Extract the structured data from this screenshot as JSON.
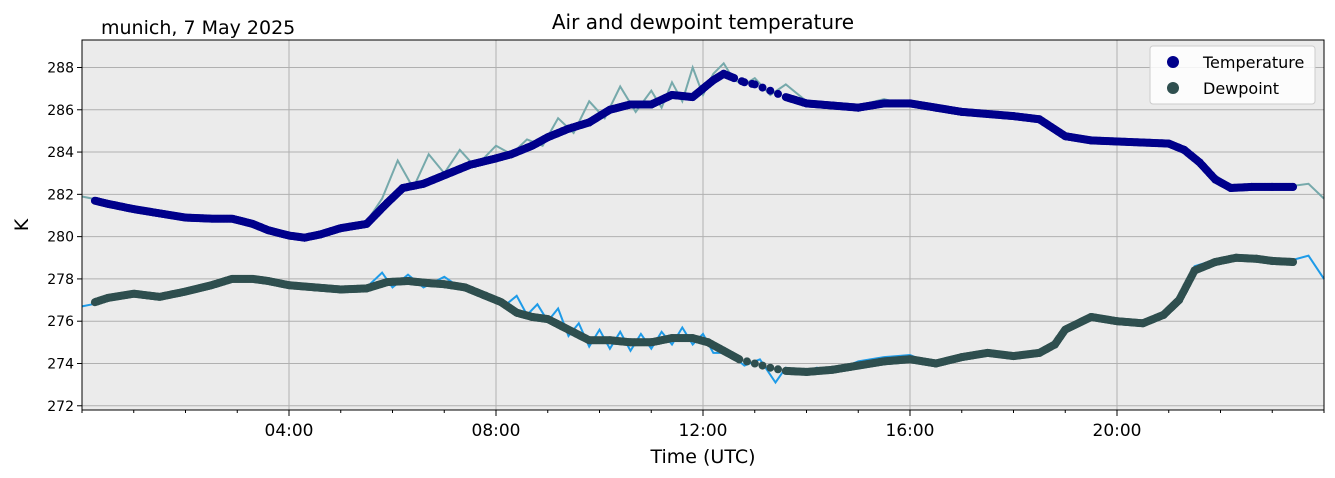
{
  "chart_data": {
    "type": "line",
    "title": "Air and dewpoint temperature",
    "subtitle": "munich, 7 May 2025",
    "xlabel": "Time (UTC)",
    "ylabel": "K",
    "xlim_hours": [
      0,
      24
    ],
    "ylim": [
      271.8,
      289.3
    ],
    "x_ticks": [
      {
        "h": 4,
        "label": "04:00"
      },
      {
        "h": 8,
        "label": "08:00"
      },
      {
        "h": 12,
        "label": "12:00"
      },
      {
        "h": 16,
        "label": "16:00"
      },
      {
        "h": 20,
        "label": "20:00"
      }
    ],
    "y_ticks": [
      272,
      274,
      276,
      278,
      280,
      282,
      284,
      286,
      288
    ],
    "grid": true,
    "legend_position": "top-right",
    "colors": {
      "plot_background": "#ebebeb",
      "grid": "#b0b0b0",
      "temperature_raw": "#76a9ab",
      "temperature_smooth": "#00008b",
      "dewpoint_raw": "#1e9be8",
      "dewpoint_smooth": "#2f4f4f"
    },
    "series": [
      {
        "name": "Temperature",
        "role": "smoothed",
        "x_hours": [
          0.25,
          0.5,
          1.0,
          1.5,
          2.0,
          2.5,
          2.9,
          3.3,
          3.6,
          4.0,
          4.3,
          4.6,
          5.0,
          5.5,
          5.9,
          6.2,
          6.6,
          7.0,
          7.5,
          8.0,
          8.3,
          8.7,
          9.0,
          9.4,
          9.8,
          10.2,
          10.6,
          11.0,
          11.4,
          11.8,
          12.0,
          12.2,
          12.4,
          12.6,
          12.8,
          13.0,
          13.3,
          13.6,
          14.0,
          14.5,
          15.0,
          15.5,
          16.0,
          16.5,
          17.0,
          17.5,
          18.0,
          18.5,
          19.0,
          19.5,
          20.0,
          20.5,
          21.0,
          21.3,
          21.6,
          21.9,
          22.2,
          22.6,
          23.0,
          23.4
        ],
        "values": [
          281.7,
          281.55,
          281.3,
          281.1,
          280.9,
          280.85,
          280.85,
          280.6,
          280.3,
          280.05,
          279.95,
          280.1,
          280.4,
          280.6,
          281.6,
          282.3,
          282.5,
          282.9,
          283.4,
          283.7,
          283.9,
          284.3,
          284.7,
          285.1,
          285.4,
          286.0,
          286.25,
          286.25,
          286.7,
          286.6,
          287.0,
          287.4,
          287.7,
          287.5,
          287.3,
          287.2,
          286.9,
          286.6,
          286.3,
          286.2,
          286.1,
          286.3,
          286.3,
          286.1,
          285.9,
          285.8,
          285.7,
          285.55,
          284.75,
          284.55,
          284.5,
          284.45,
          284.4,
          284.1,
          283.5,
          282.7,
          282.3,
          282.35,
          282.35,
          282.35
        ]
      },
      {
        "name": "Dewpoint",
        "role": "smoothed",
        "x_hours": [
          0.25,
          0.5,
          1.0,
          1.5,
          2.0,
          2.5,
          2.9,
          3.3,
          3.6,
          4.0,
          4.5,
          5.0,
          5.5,
          5.9,
          6.3,
          6.7,
          7.0,
          7.4,
          7.8,
          8.1,
          8.4,
          8.7,
          9.0,
          9.4,
          9.8,
          10.2,
          10.6,
          11.0,
          11.4,
          11.8,
          12.1,
          12.4,
          12.7,
          13.0,
          13.3,
          13.6,
          14.0,
          14.5,
          15.0,
          15.5,
          16.0,
          16.5,
          17.0,
          17.5,
          18.0,
          18.5,
          18.8,
          19.0,
          19.5,
          20.0,
          20.5,
          20.9,
          21.2,
          21.5,
          21.9,
          22.3,
          22.7,
          23.0,
          23.4
        ],
        "values": [
          276.9,
          277.1,
          277.3,
          277.15,
          277.4,
          277.7,
          278.0,
          278.0,
          277.9,
          277.7,
          277.6,
          277.5,
          277.55,
          277.85,
          277.9,
          277.8,
          277.75,
          277.6,
          277.2,
          276.9,
          276.4,
          276.2,
          276.1,
          275.6,
          275.1,
          275.1,
          275.0,
          275.0,
          275.2,
          275.2,
          275.0,
          274.6,
          274.2,
          274.0,
          273.8,
          273.65,
          273.6,
          273.7,
          273.9,
          274.1,
          274.2,
          274.0,
          274.3,
          274.5,
          274.35,
          274.5,
          274.9,
          275.6,
          276.2,
          276.0,
          275.9,
          276.3,
          277.0,
          278.4,
          278.8,
          279.0,
          278.95,
          278.85,
          278.8
        ]
      },
      {
        "name": "",
        "role": "raw temperature",
        "x_hours": [
          0.0,
          0.2,
          0.4,
          1.0,
          2.0,
          3.0,
          4.0,
          4.5,
          5.0,
          5.5,
          5.8,
          6.1,
          6.4,
          6.7,
          7.0,
          7.3,
          7.6,
          8.0,
          8.3,
          8.6,
          8.9,
          9.2,
          9.5,
          9.8,
          10.1,
          10.4,
          10.7,
          11.0,
          11.2,
          11.4,
          11.6,
          11.8,
          12.0,
          12.2,
          12.4,
          12.6,
          12.8,
          13.0,
          13.3,
          13.6,
          14.0,
          14.5,
          15.0,
          15.5,
          16.0,
          16.5,
          17.0,
          17.5,
          18.0,
          18.5,
          19.0,
          19.5,
          20.0,
          20.5,
          21.0,
          21.3,
          21.6,
          21.9,
          22.2,
          22.6,
          23.0,
          23.4,
          23.7,
          24.0
        ],
        "values": [
          281.9,
          281.8,
          281.5,
          281.3,
          280.9,
          280.8,
          280.0,
          280.0,
          280.4,
          280.7,
          281.8,
          283.6,
          282.3,
          283.9,
          283.0,
          284.1,
          283.3,
          284.3,
          283.9,
          284.6,
          284.3,
          285.6,
          284.9,
          286.4,
          285.6,
          287.1,
          285.9,
          286.9,
          286.1,
          287.3,
          286.4,
          288.0,
          286.7,
          287.7,
          288.2,
          287.4,
          287.2,
          287.5,
          286.7,
          287.2,
          286.4,
          286.1,
          286.2,
          286.5,
          286.2,
          286.2,
          285.9,
          285.8,
          285.7,
          285.5,
          284.8,
          284.6,
          284.5,
          284.4,
          284.4,
          284.1,
          283.6,
          282.9,
          282.4,
          282.3,
          282.3,
          282.4,
          282.5,
          281.8
        ]
      },
      {
        "name": "",
        "role": "raw dewpoint",
        "x_hours": [
          0.0,
          0.2,
          0.5,
          1.0,
          1.5,
          2.0,
          2.5,
          3.0,
          3.5,
          4.0,
          4.5,
          5.0,
          5.5,
          5.8,
          6.0,
          6.3,
          6.6,
          7.0,
          7.3,
          7.6,
          7.9,
          8.2,
          8.4,
          8.6,
          8.8,
          9.0,
          9.2,
          9.4,
          9.6,
          9.8,
          10.0,
          10.2,
          10.4,
          10.6,
          10.8,
          11.0,
          11.2,
          11.4,
          11.6,
          11.8,
          12.0,
          12.2,
          12.5,
          12.8,
          13.1,
          13.4,
          13.6,
          13.9,
          14.2,
          14.5,
          15.0,
          15.5,
          16.0,
          16.5,
          17.0,
          17.5,
          18.0,
          18.5,
          18.8,
          19.0,
          19.5,
          20.0,
          20.5,
          20.9,
          21.2,
          21.5,
          21.9,
          22.3,
          22.7,
          23.0,
          23.4,
          23.7,
          24.0
        ],
        "values": [
          276.7,
          276.8,
          277.0,
          277.3,
          277.1,
          277.4,
          277.7,
          278.1,
          277.9,
          277.7,
          277.6,
          277.5,
          277.6,
          278.3,
          277.6,
          278.2,
          277.6,
          278.1,
          277.6,
          277.5,
          277.1,
          276.8,
          277.2,
          276.3,
          276.8,
          276.0,
          276.6,
          275.3,
          275.9,
          274.8,
          275.6,
          274.7,
          275.5,
          274.6,
          275.4,
          274.7,
          275.5,
          274.9,
          275.7,
          274.9,
          275.4,
          274.5,
          274.5,
          273.9,
          274.2,
          273.1,
          273.8,
          273.5,
          273.8,
          273.6,
          274.1,
          274.3,
          274.4,
          273.9,
          274.4,
          274.6,
          274.3,
          274.5,
          275.0,
          275.5,
          276.3,
          276.0,
          275.8,
          276.3,
          277.2,
          278.6,
          278.9,
          279.1,
          279.0,
          278.7,
          278.9,
          279.1,
          278.0
        ]
      }
    ],
    "legend": [
      {
        "label": "Temperature",
        "color_key": "temperature_smooth"
      },
      {
        "label": "Dewpoint",
        "color_key": "dewpoint_smooth"
      }
    ]
  }
}
